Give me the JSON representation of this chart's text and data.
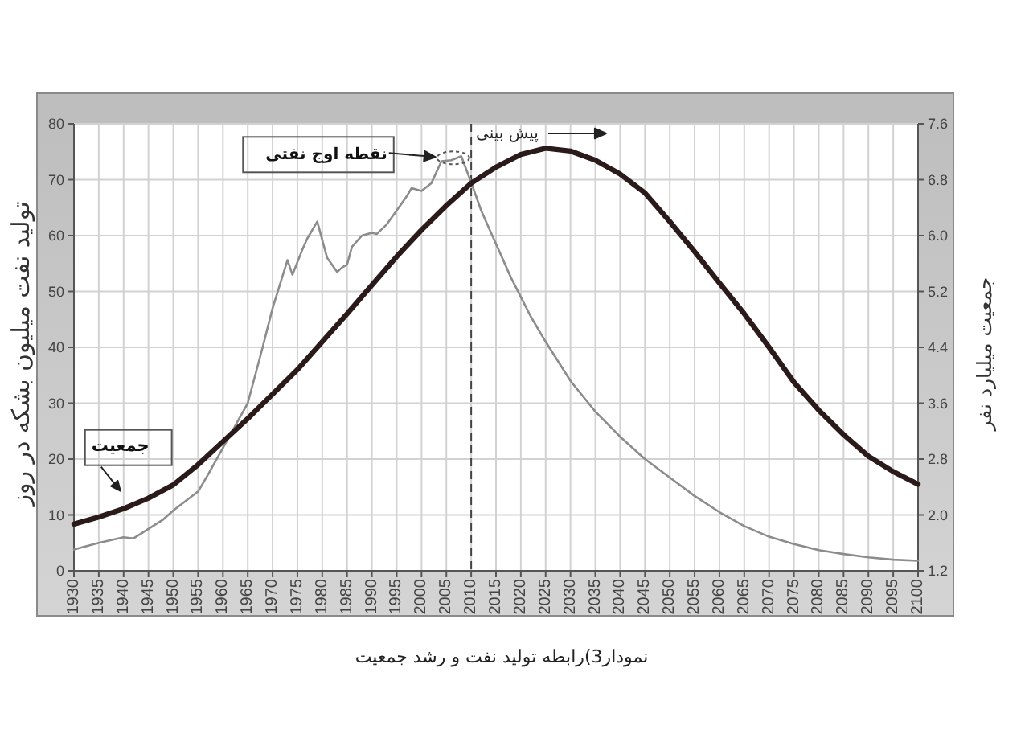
{
  "chart_data": {
    "type": "line",
    "title": "نمودار3)رابطه  تولید نفت و رشد جمعیت",
    "ylabel": "تولید نفت  میلیون بشکه در روز",
    "y2label": "جمعیت  میلیارد نفر",
    "xlim": [
      1930,
      2100
    ],
    "xticks": [
      1930,
      1935,
      1940,
      1945,
      1950,
      1955,
      1960,
      1965,
      1970,
      1975,
      1980,
      1985,
      1990,
      1995,
      2000,
      2005,
      2010,
      2015,
      2020,
      2025,
      2030,
      2035,
      2040,
      2045,
      2050,
      2055,
      2060,
      2065,
      2070,
      2075,
      2080,
      2085,
      2090,
      2095,
      2100
    ],
    "ylim": [
      0,
      80
    ],
    "yticks": [
      0,
      10,
      20,
      30,
      40,
      50,
      60,
      70,
      80
    ],
    "y2lim": [
      1.2,
      7.6
    ],
    "y2ticks": [
      1.2,
      {
        "value": 2,
        "label": "2.0"
      },
      2.8,
      3.6,
      4.4,
      5.2,
      {
        "value": 6,
        "label": "6.0"
      },
      6.8,
      7.6
    ],
    "grid": true,
    "series": [
      {
        "color": "#8c8c8c",
        "x": [
          1930,
          1935,
          1940,
          1942,
          1945,
          1948,
          1950,
          1955,
          1957,
          1960,
          1965,
          1968,
          1970,
          1973,
          1974,
          1976,
          1977,
          1979,
          1981,
          1983,
          1984,
          1985,
          1986,
          1988,
          1990,
          1991,
          1993,
          1995,
          1997,
          1998,
          2000,
          2002,
          2004,
          2006,
          2008,
          2010,
          2012,
          2014,
          2016,
          2018,
          2020,
          2022,
          2025,
          2030,
          2035,
          2040,
          2045,
          2050,
          2055,
          2060,
          2065,
          2070,
          2075,
          2080,
          2085,
          2090,
          2095,
          2100
        ],
        "values": [
          3.8,
          5.0,
          6.0,
          5.8,
          7.5,
          9.2,
          10.8,
          14.2,
          17.2,
          22.0,
          30.0,
          40.0,
          47.0,
          55.6,
          53.0,
          57.5,
          59.5,
          62.5,
          56.0,
          53.5,
          54.3,
          54.8,
          58.0,
          60.0,
          60.5,
          60.3,
          62.0,
          64.5,
          67.0,
          68.5,
          68.0,
          69.4,
          73.3,
          73.5,
          74.2,
          69.5,
          64.5,
          60.5,
          56.5,
          52.5,
          49.0,
          45.5,
          41.0,
          34.0,
          28.5,
          24.0,
          20.0,
          16.7,
          13.4,
          10.5,
          8.0,
          6.1,
          4.8,
          3.7,
          3.0,
          2.4,
          2.0,
          1.8
        ]
      },
      {
        "name": "جمعیت",
        "color": "#2b1a1a",
        "axis": "y2",
        "x": [
          1930,
          1935,
          1940,
          1945,
          1950,
          1955,
          1960,
          1965,
          1970,
          1975,
          1980,
          1985,
          1990,
          1995,
          2000,
          2005,
          2010,
          2015,
          2020,
          2025,
          2030,
          2035,
          2040,
          2045,
          2050,
          2055,
          2060,
          2065,
          2070,
          2075,
          2080,
          2085,
          2090,
          2095,
          2100
        ],
        "values": [
          1.87,
          1.97,
          2.09,
          2.24,
          2.43,
          2.72,
          3.05,
          3.38,
          3.73,
          4.08,
          4.48,
          4.88,
          5.29,
          5.7,
          6.08,
          6.43,
          6.75,
          6.98,
          7.16,
          7.25,
          7.21,
          7.08,
          6.88,
          6.61,
          6.2,
          5.77,
          5.32,
          4.88,
          4.4,
          3.9,
          3.5,
          3.15,
          2.84,
          2.62,
          2.44
        ]
      }
    ],
    "ref_lines": [
      {
        "axis": "x",
        "value": 2010,
        "label": "پیش بینی",
        "line_style": "dashed"
      }
    ],
    "annotations": [
      "نقطه اوج نفتی"
    ]
  }
}
